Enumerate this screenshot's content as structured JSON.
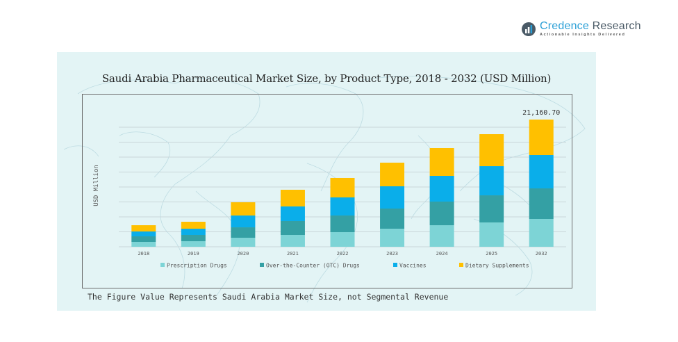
{
  "brand": {
    "name_part1": "Credence",
    "name_part2": " Research",
    "tagline": "Actionable Insights Delivered",
    "icon": "bar-chart-logo-icon",
    "colors": {
      "primary": "#2a9fd6",
      "secondary": "#4a5a66"
    }
  },
  "footer_note": "The Figure Value Represents Saudi Arabia Market Size, not Segmental Revenue",
  "chart_data": {
    "type": "bar",
    "stacked": true,
    "title": "Saudi Arabia Pharmaceutical Market Size, by Product Type, 2018 - 2032 (USD Million)",
    "xlabel": "",
    "ylabel": "USD Million",
    "categories": [
      "2018",
      "2019",
      "2020",
      "2021",
      "2022",
      "2023",
      "2024",
      "2025",
      "2032"
    ],
    "ylim": [
      0,
      23000
    ],
    "grid": true,
    "legend_position": "bottom",
    "series": [
      {
        "name": "Prescription Drugs",
        "color": "#7dd4d6",
        "values": [
          810,
          925,
          1500,
          1965,
          2430,
          3005,
          3585,
          4045,
          4625
        ]
      },
      {
        "name": "Over-the-Counter (OTC) Drugs",
        "color": "#34a0a4",
        "values": [
          925,
          1040,
          1735,
          2315,
          2775,
          3355,
          3930,
          4510,
          5090
        ]
      },
      {
        "name": "Vaccines",
        "color": "#0aaeea",
        "values": [
          810,
          1040,
          1965,
          2430,
          3005,
          3700,
          4280,
          4855,
          5550
        ]
      },
      {
        "name": "Dietary Supplements",
        "color": "#ffc000",
        "values": [
          1040,
          1155,
          2200,
          2775,
          3240,
          3930,
          4625,
          5320,
          5895.7
        ]
      }
    ],
    "annotations": [
      {
        "category": "2032",
        "text": "21,160.70"
      }
    ]
  }
}
